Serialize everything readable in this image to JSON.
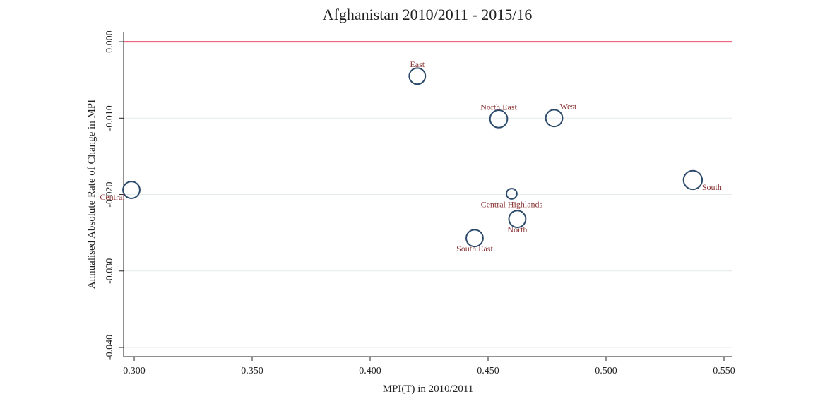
{
  "chart_data": {
    "type": "scatter",
    "title": "Afghanistan 2010/2011 - 2015/16",
    "x_label": "MPI(T) in 2010/2011",
    "y_label": "Annualised Absolute Rate of Change in MPI",
    "points": [
      "East",
      "North East",
      "West",
      "South",
      "Central",
      "Central Highlands",
      "North",
      "South East"
    ],
    "x": [
      0.42,
      0.4545,
      0.478,
      0.5368,
      0.2988,
      0.46,
      0.4624,
      0.4443
    ],
    "y": [
      -0.0045,
      -0.0101,
      -0.01,
      -0.0181,
      -0.0194,
      -0.0199,
      -0.0232,
      -0.0257
    ],
    "sizes": [
      12,
      14,
      13,
      16,
      13,
      5,
      13,
      13
    ],
    "marker_color": "#2c4a6b",
    "label_color": "#8b3535",
    "reference_line": {
      "value": 0,
      "color": "#e8506b"
    },
    "xlim": [
      0.2955,
      0.5536
    ],
    "ylim": [
      -0.0412,
      0.0013
    ],
    "xticks": [
      {
        "value": 0.3,
        "label": "0.300"
      },
      {
        "value": 0.35,
        "label": "0.350"
      },
      {
        "value": 0.4,
        "label": "0.400"
      },
      {
        "value": 0.45,
        "label": "0.450"
      },
      {
        "value": 0.5,
        "label": "0.500"
      },
      {
        "value": 0.55,
        "label": "0.550"
      }
    ],
    "yticks": [
      {
        "value": 0,
        "label": "0.000"
      },
      {
        "value": -0.01,
        "label": "-0.010"
      },
      {
        "value": -0.02,
        "label": "-0.020"
      },
      {
        "value": -0.03,
        "label": "-0.030"
      },
      {
        "value": -0.04,
        "label": "-0.040"
      }
    ],
    "grid": true
  }
}
